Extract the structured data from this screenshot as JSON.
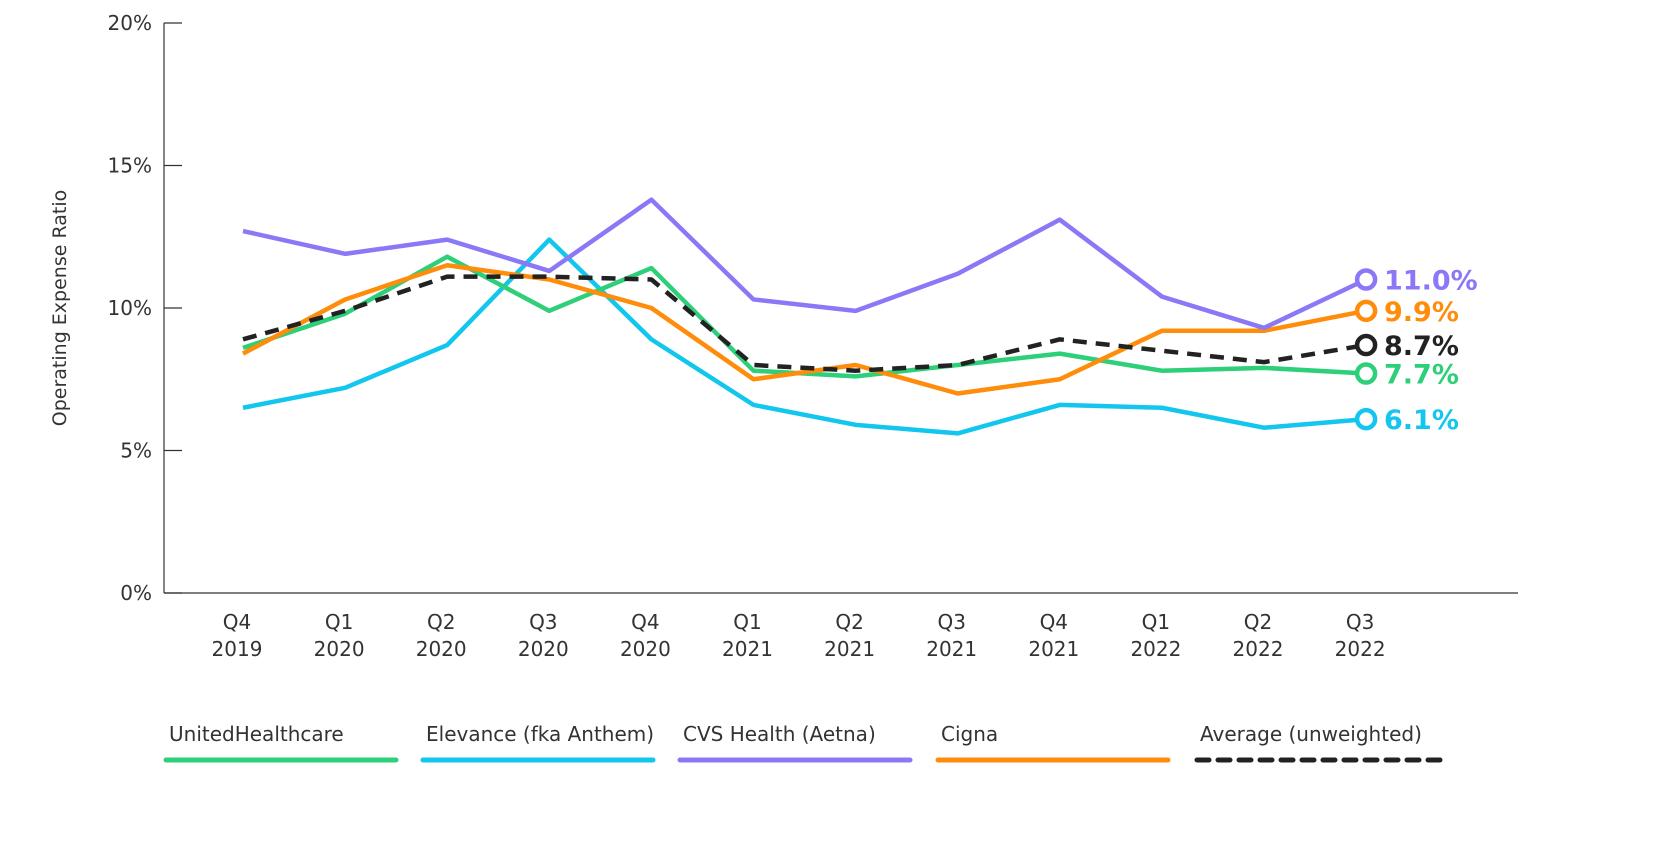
{
  "chart_data": {
    "type": "line",
    "title": "",
    "xlabel": "",
    "ylabel": "Operating Expense Ratio",
    "ylim": [
      0,
      20
    ],
    "yticks": [
      "0%",
      "5%",
      "10%",
      "15%",
      "20%"
    ],
    "ytick_values": [
      0,
      5,
      10,
      15,
      20
    ],
    "grid": false,
    "legend_position": "bottom",
    "categories": [
      [
        "Q4",
        "2019"
      ],
      [
        "Q1",
        "2020"
      ],
      [
        "Q2",
        "2020"
      ],
      [
        "Q3",
        "2020"
      ],
      [
        "Q4",
        "2020"
      ],
      [
        "Q1",
        "2021"
      ],
      [
        "Q2",
        "2021"
      ],
      [
        "Q3",
        "2021"
      ],
      [
        "Q4",
        "2021"
      ],
      [
        "Q1",
        "2022"
      ],
      [
        "Q2",
        "2022"
      ],
      [
        "Q3",
        "2022"
      ]
    ],
    "series": [
      {
        "name": "UnitedHealthcare",
        "color": "#2dcf78",
        "dashed": false,
        "end_label": "7.7%",
        "values": [
          8.6,
          9.8,
          11.8,
          9.9,
          11.4,
          7.8,
          7.6,
          8.0,
          8.4,
          7.8,
          7.9,
          7.7
        ]
      },
      {
        "name": "Elevance (fka Anthem)",
        "color": "#12c6ee",
        "dashed": false,
        "end_label": "6.1%",
        "values": [
          6.5,
          7.2,
          8.7,
          12.4,
          8.9,
          6.6,
          5.9,
          5.6,
          6.6,
          6.5,
          5.8,
          6.1
        ]
      },
      {
        "name": "CVS Health (Aetna)",
        "color": "#8a78f7",
        "dashed": false,
        "end_label": "11.0%",
        "values": [
          12.7,
          11.9,
          12.4,
          11.3,
          13.8,
          10.3,
          9.9,
          11.2,
          13.1,
          10.4,
          9.3,
          11.0
        ]
      },
      {
        "name": "Cigna",
        "color": "#ff8c0a",
        "dashed": false,
        "end_label": "9.9%",
        "values": [
          8.4,
          10.3,
          11.5,
          11.0,
          10.0,
          7.5,
          8.0,
          7.0,
          7.5,
          9.2,
          9.2,
          9.9
        ]
      },
      {
        "name": "Average (unweighted)",
        "color": "#222222",
        "dashed": true,
        "end_label": "8.7%",
        "values": [
          8.9,
          9.9,
          11.1,
          11.1,
          11.0,
          8.0,
          7.8,
          8.0,
          8.9,
          8.5,
          8.1,
          8.7
        ]
      }
    ]
  }
}
